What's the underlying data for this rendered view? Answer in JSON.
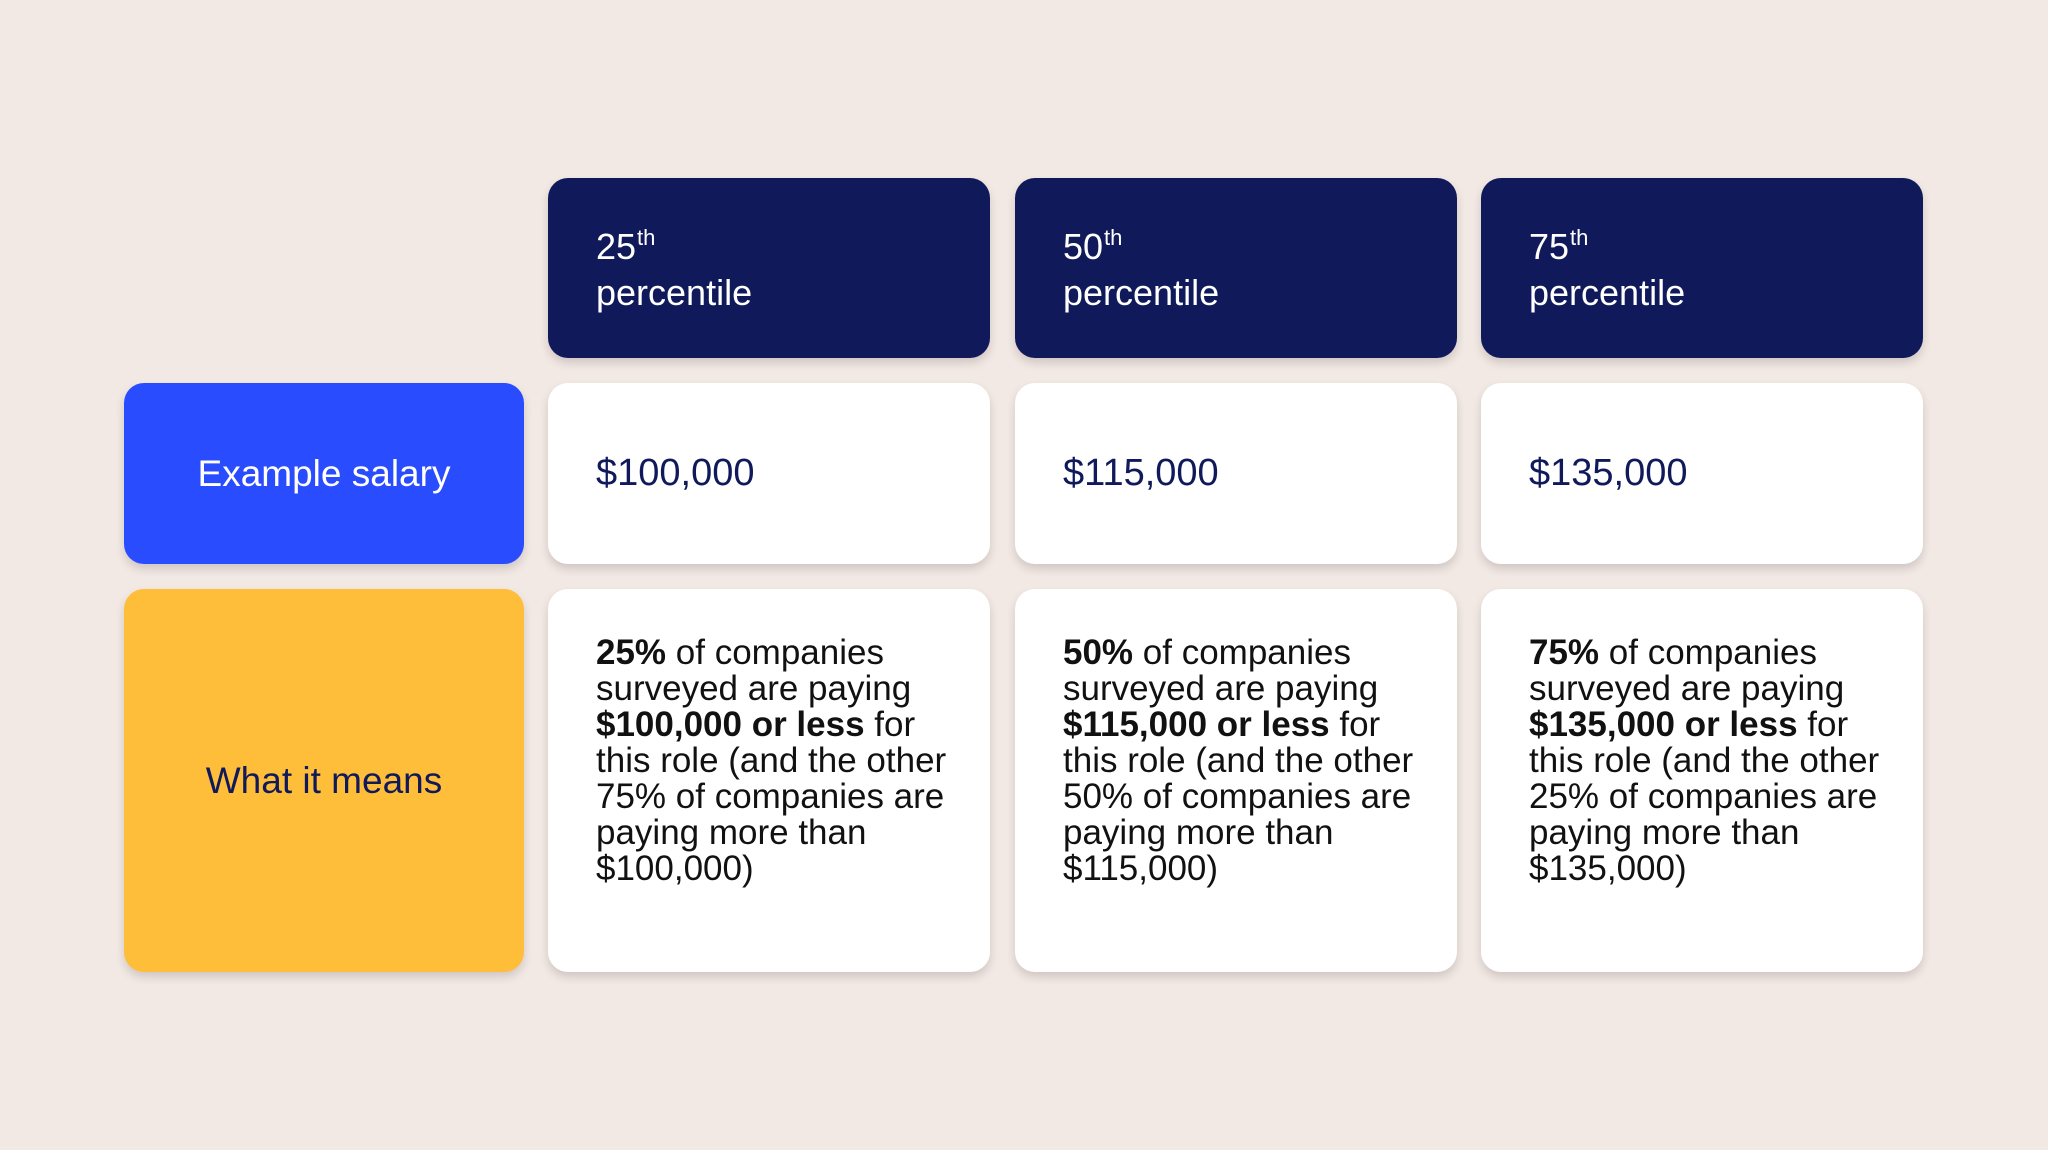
{
  "columns": [
    {
      "rank": "25",
      "suffix": "th",
      "word": "percentile",
      "salary": "$100,000",
      "means_pct": "25%",
      "means_t1": " of companies surveyed are paying ",
      "means_amount": "$100,000 or less",
      "means_t2": " for this role (and the other 75% of companies are paying more than $100,000)"
    },
    {
      "rank": "50",
      "suffix": "th",
      "word": "percentile",
      "salary": "$115,000",
      "means_pct": "50%",
      "means_t1": " of companies surveyed are paying ",
      "means_amount": "$115,000 or less",
      "means_t2": " for this role (and the other 50% of companies are paying more than $115,000)"
    },
    {
      "rank": "75",
      "suffix": "th",
      "word": "percentile",
      "salary": "$135,000",
      "means_pct": "75%",
      "means_t1": " of companies surveyed are paying ",
      "means_amount": "$135,000 or less",
      "means_t2": " for this role (and the other 25% of companies are paying more than $135,000)"
    }
  ],
  "rows": {
    "salary_label": "Example salary",
    "means_label": "What it means"
  },
  "colors": {
    "background": "#f2e9e4",
    "header": "#101a5a",
    "salary_label": "#2a4cff",
    "means_label": "#ffbe3a",
    "card": "#ffffff"
  }
}
